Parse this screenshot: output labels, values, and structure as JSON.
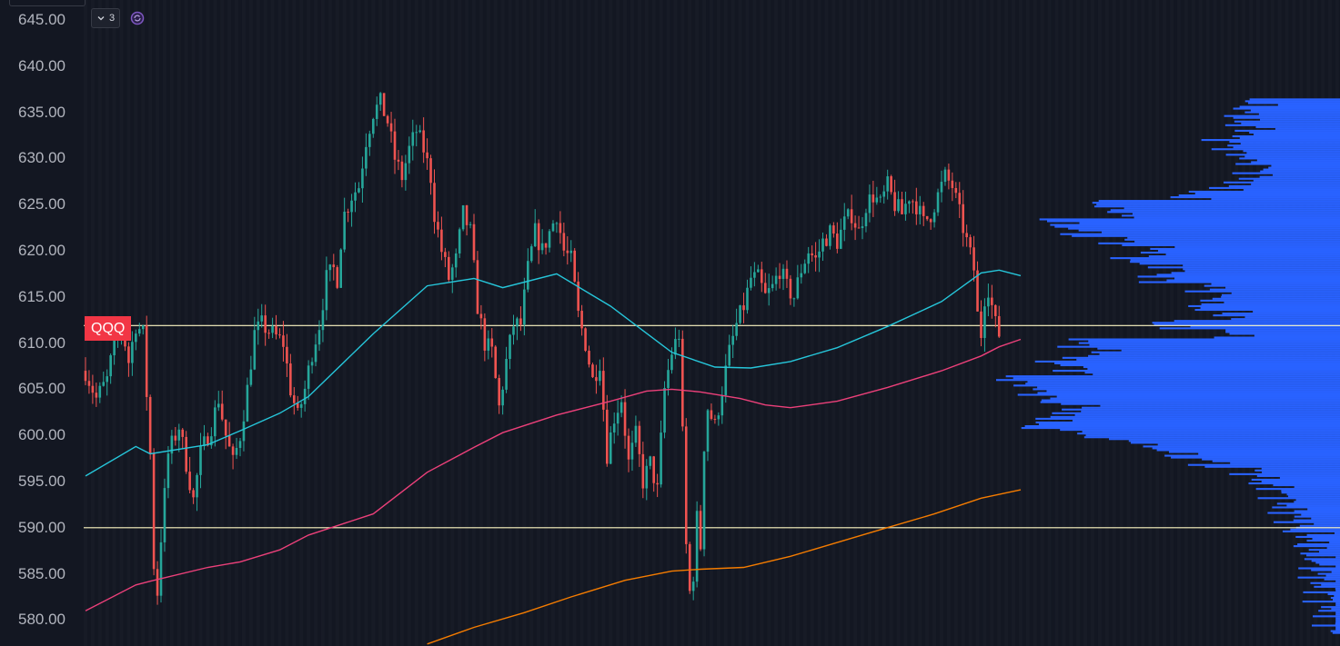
{
  "ticker": "QQQ",
  "toolbar": {
    "collapse_count": "3",
    "collapse_icon": "chevron-down-icon",
    "sync_icon": "sync-icon"
  },
  "colors": {
    "background": "#131722",
    "up": "#26a69a",
    "down": "#ef5350",
    "ma_short": "#26c6da",
    "ma_mid": "#ec407a",
    "ma_long": "#f57c00",
    "volume_profile": "#2962ff",
    "level_line": "#fff9c4",
    "badge": "#f23645"
  },
  "chart_data": {
    "type": "candlestick",
    "ylim": [
      577.5,
      647.5
    ],
    "y_ticks": [
      "645.00",
      "640.00",
      "635.00",
      "630.00",
      "625.00",
      "620.00",
      "615.00",
      "610.00",
      "605.00",
      "600.00",
      "595.00",
      "590.00",
      "585.00",
      "580.00"
    ],
    "horizontal_levels": [
      611.9,
      590.0
    ],
    "price_path": [
      [
        0,
        607
      ],
      [
        3,
        604
      ],
      [
        6,
        606
      ],
      [
        8,
        610
      ],
      [
        10,
        612
      ],
      [
        12,
        608
      ],
      [
        14,
        612
      ],
      [
        16,
        611
      ],
      [
        18,
        598
      ],
      [
        19,
        586
      ],
      [
        20,
        583
      ],
      [
        21,
        589
      ],
      [
        23,
        598
      ],
      [
        26,
        601
      ],
      [
        28,
        597
      ],
      [
        30,
        593
      ],
      [
        32,
        598
      ],
      [
        35,
        601
      ],
      [
        37,
        604
      ],
      [
        39,
        600
      ],
      [
        41,
        597
      ],
      [
        43,
        600
      ],
      [
        45,
        605
      ],
      [
        47,
        611
      ],
      [
        49,
        612
      ],
      [
        52,
        611
      ],
      [
        55,
        610
      ],
      [
        57,
        605
      ],
      [
        59,
        602
      ],
      [
        61,
        605
      ],
      [
        63,
        609
      ],
      [
        65,
        612
      ],
      [
        67,
        617
      ],
      [
        69,
        618
      ],
      [
        70,
        617
      ],
      [
        71,
        621
      ],
      [
        72,
        624
      ],
      [
        74,
        626
      ],
      [
        76,
        627
      ],
      [
        78,
        632
      ],
      [
        80,
        635
      ],
      [
        82,
        636
      ],
      [
        84,
        634
      ],
      [
        86,
        630
      ],
      [
        88,
        628
      ],
      [
        90,
        631
      ],
      [
        92,
        633
      ],
      [
        94,
        631
      ],
      [
        96,
        628
      ],
      [
        97,
        624
      ],
      [
        99,
        620
      ],
      [
        101,
        617
      ],
      [
        103,
        619
      ],
      [
        105,
        624
      ],
      [
        107,
        622
      ],
      [
        109,
        614
      ],
      [
        111,
        610
      ],
      [
        113,
        609
      ],
      [
        115,
        603
      ],
      [
        117,
        608
      ],
      [
        119,
        612
      ],
      [
        121,
        612
      ],
      [
        123,
        618
      ],
      [
        125,
        622
      ],
      [
        127,
        620
      ],
      [
        129,
        622
      ],
      [
        131,
        624
      ],
      [
        133,
        620
      ],
      [
        135,
        619
      ],
      [
        137,
        613
      ],
      [
        139,
        610
      ],
      [
        141,
        606
      ],
      [
        143,
        608
      ],
      [
        145,
        598
      ],
      [
        147,
        602
      ],
      [
        149,
        604
      ],
      [
        151,
        597
      ],
      [
        153,
        600
      ],
      [
        155,
        595
      ],
      [
        157,
        597
      ],
      [
        159,
        594
      ],
      [
        161,
        605
      ],
      [
        163,
        609
      ],
      [
        165,
        611
      ],
      [
        166,
        600
      ],
      [
        167,
        588
      ],
      [
        168,
        583
      ],
      [
        169,
        585
      ],
      [
        170,
        591
      ],
      [
        171,
        588
      ],
      [
        172,
        599
      ],
      [
        173,
        603
      ],
      [
        175,
        601
      ],
      [
        177,
        605
      ],
      [
        179,
        609
      ],
      [
        181,
        612
      ],
      [
        183,
        614
      ],
      [
        185,
        617
      ],
      [
        187,
        617
      ],
      [
        189,
        615
      ],
      [
        191,
        616
      ],
      [
        193,
        618
      ],
      [
        195,
        616
      ],
      [
        197,
        615
      ],
      [
        199,
        618
      ],
      [
        201,
        620
      ],
      [
        203,
        619
      ],
      [
        205,
        621
      ],
      [
        207,
        622
      ],
      [
        209,
        621
      ],
      [
        211,
        623
      ],
      [
        213,
        624
      ],
      [
        215,
        622
      ],
      [
        217,
        625
      ],
      [
        219,
        626
      ],
      [
        221,
        625
      ],
      [
        223,
        627
      ],
      [
        225,
        625
      ],
      [
        227,
        624
      ],
      [
        229,
        626
      ],
      [
        231,
        625
      ],
      [
        233,
        623
      ],
      [
        235,
        624
      ],
      [
        237,
        626
      ],
      [
        239,
        628
      ],
      [
        241,
        627
      ],
      [
        243,
        624
      ],
      [
        245,
        621
      ],
      [
        247,
        618
      ],
      [
        248,
        613
      ],
      [
        249,
        611
      ],
      [
        250,
        615
      ],
      [
        251,
        616
      ],
      [
        252,
        614
      ],
      [
        253,
        612
      ],
      [
        254,
        611
      ]
    ],
    "moving_averages": [
      {
        "color": "ma_short",
        "points": [
          [
            0,
            595.6
          ],
          [
            14,
            598.8
          ],
          [
            18,
            598
          ],
          [
            34,
            599
          ],
          [
            43,
            600.5
          ],
          [
            54,
            602.4
          ],
          [
            62,
            604.2
          ],
          [
            80,
            611
          ],
          [
            95,
            616.2
          ],
          [
            108,
            617
          ],
          [
            116,
            616
          ],
          [
            131,
            617.5
          ],
          [
            146,
            614
          ],
          [
            163,
            609
          ],
          [
            175,
            607.4
          ],
          [
            185,
            607.3
          ],
          [
            196,
            608
          ],
          [
            209,
            609.5
          ],
          [
            223,
            611.8
          ],
          [
            238,
            614.5
          ],
          [
            249,
            617.6
          ],
          [
            254,
            617.9
          ],
          [
            260,
            617.3
          ]
        ]
      },
      {
        "color": "ma_mid",
        "points": [
          [
            0,
            581
          ],
          [
            14,
            583.8
          ],
          [
            18,
            584.2
          ],
          [
            34,
            585.7
          ],
          [
            43,
            586.3
          ],
          [
            54,
            587.6
          ],
          [
            62,
            589.2
          ],
          [
            80,
            591.5
          ],
          [
            95,
            596
          ],
          [
            108,
            598.7
          ],
          [
            116,
            600.3
          ],
          [
            131,
            602.2
          ],
          [
            146,
            603.7
          ],
          [
            156,
            604.8
          ],
          [
            163,
            605
          ],
          [
            171,
            604.7
          ],
          [
            182,
            604
          ],
          [
            189,
            603.3
          ],
          [
            196,
            603
          ],
          [
            209,
            603.7
          ],
          [
            223,
            605.2
          ],
          [
            238,
            607
          ],
          [
            249,
            608.6
          ],
          [
            254,
            609.6
          ],
          [
            260,
            610.4
          ]
        ]
      },
      {
        "color": "ma_long",
        "points": [
          [
            95,
            577.4
          ],
          [
            108,
            579.2
          ],
          [
            122,
            580.8
          ],
          [
            135,
            582.5
          ],
          [
            150,
            584.3
          ],
          [
            163,
            585.3
          ],
          [
            171,
            585.5
          ],
          [
            183,
            585.7
          ],
          [
            196,
            586.9
          ],
          [
            209,
            588.4
          ],
          [
            222,
            589.9
          ],
          [
            236,
            591.5
          ],
          [
            249,
            593.2
          ],
          [
            260,
            594.1
          ]
        ]
      }
    ],
    "volume_profile": [
      [
        636,
        0.2
      ],
      [
        635,
        0.22
      ],
      [
        634,
        0.23
      ],
      [
        633,
        0.2
      ],
      [
        632,
        0.26
      ],
      [
        631,
        0.25
      ],
      [
        630,
        0.22
      ],
      [
        629,
        0.18
      ],
      [
        628,
        0.2
      ],
      [
        627,
        0.25
      ],
      [
        626,
        0.35
      ],
      [
        625,
        0.55
      ],
      [
        624,
        0.5
      ],
      [
        623,
        0.65
      ],
      [
        622,
        0.6
      ],
      [
        621,
        0.5
      ],
      [
        620,
        0.42
      ],
      [
        619,
        0.48
      ],
      [
        618,
        0.38
      ],
      [
        617,
        0.42
      ],
      [
        616,
        0.3
      ],
      [
        615,
        0.28
      ],
      [
        614,
        0.32
      ],
      [
        613,
        0.25
      ],
      [
        612,
        0.4
      ],
      [
        611,
        0.25
      ],
      [
        610,
        0.6
      ],
      [
        609,
        0.55
      ],
      [
        608,
        0.65
      ],
      [
        607,
        0.6
      ],
      [
        606,
        0.75
      ],
      [
        605,
        0.7
      ],
      [
        604,
        0.68
      ],
      [
        603,
        0.6
      ],
      [
        602,
        0.65
      ],
      [
        601,
        0.7
      ],
      [
        600,
        0.58
      ],
      [
        599,
        0.45
      ],
      [
        598,
        0.38
      ],
      [
        597,
        0.3
      ],
      [
        596,
        0.2
      ],
      [
        595,
        0.18
      ],
      [
        594,
        0.14
      ],
      [
        593,
        0.13
      ],
      [
        592,
        0.12
      ],
      [
        591,
        0.1
      ],
      [
        590,
        0.1
      ],
      [
        589,
        0.07
      ],
      [
        588,
        0.07
      ],
      [
        587,
        0.06
      ],
      [
        586,
        0.05
      ],
      [
        585,
        0.05
      ],
      [
        584,
        0.04
      ],
      [
        583,
        0.03
      ],
      [
        582,
        0.03
      ],
      [
        581,
        0.02
      ],
      [
        580,
        0.01
      ],
      [
        579,
        0.01
      ]
    ]
  }
}
